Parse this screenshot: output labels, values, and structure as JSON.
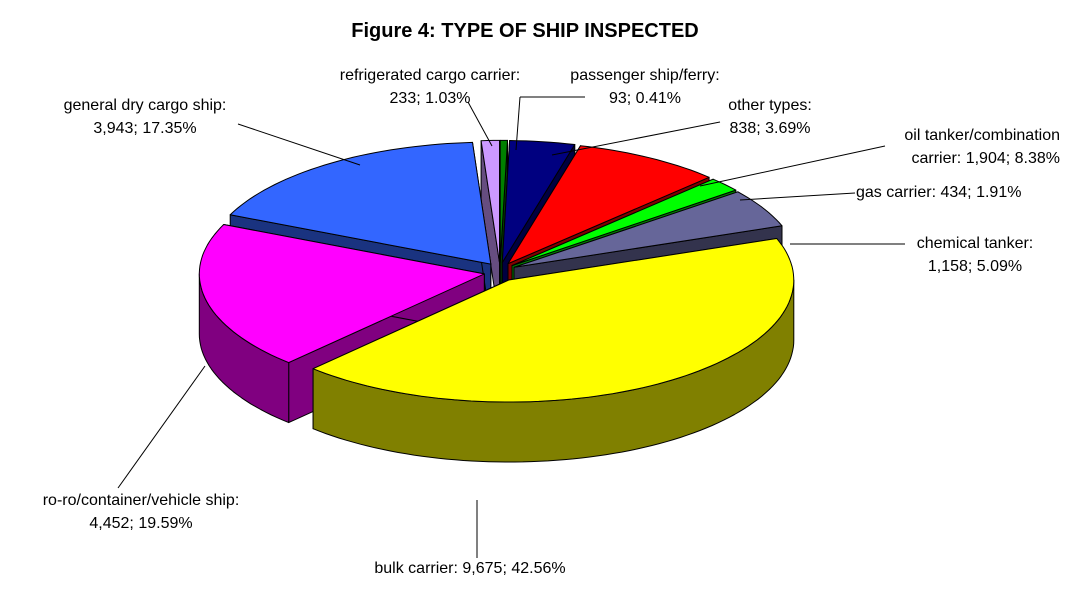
{
  "chart_data": {
    "type": "pie3d",
    "title": "Figure 4: TYPE OF SHIP INSPECTED",
    "categories": [
      "passenger ship/ferry:",
      "other types:",
      "oil tanker/combination carrier:",
      "gas carrier:",
      "chemical tanker:",
      "bulk carrier:",
      "ro-ro/container/vehicle ship:",
      "general dry cargo ship:",
      "refrigerated cargo carrier:"
    ],
    "values": [
      93,
      838,
      1904,
      434,
      1158,
      9675,
      4452,
      3943,
      233
    ],
    "value_labels": [
      "93; 0.41%",
      "838; 3.69%",
      "1,904; 8.38%",
      "434; 1.91%",
      "1,158; 5.09%",
      "9,675; 42.56%",
      "4,452; 19.59%",
      "3,943; 17.35%",
      "233; 1.03%"
    ],
    "colors": [
      "#008000",
      "#000080",
      "#ff0000",
      "#00ff00",
      "#666699",
      "#ffff00",
      "#ff00ff",
      "#3366ff",
      "#cc99ff"
    ]
  }
}
